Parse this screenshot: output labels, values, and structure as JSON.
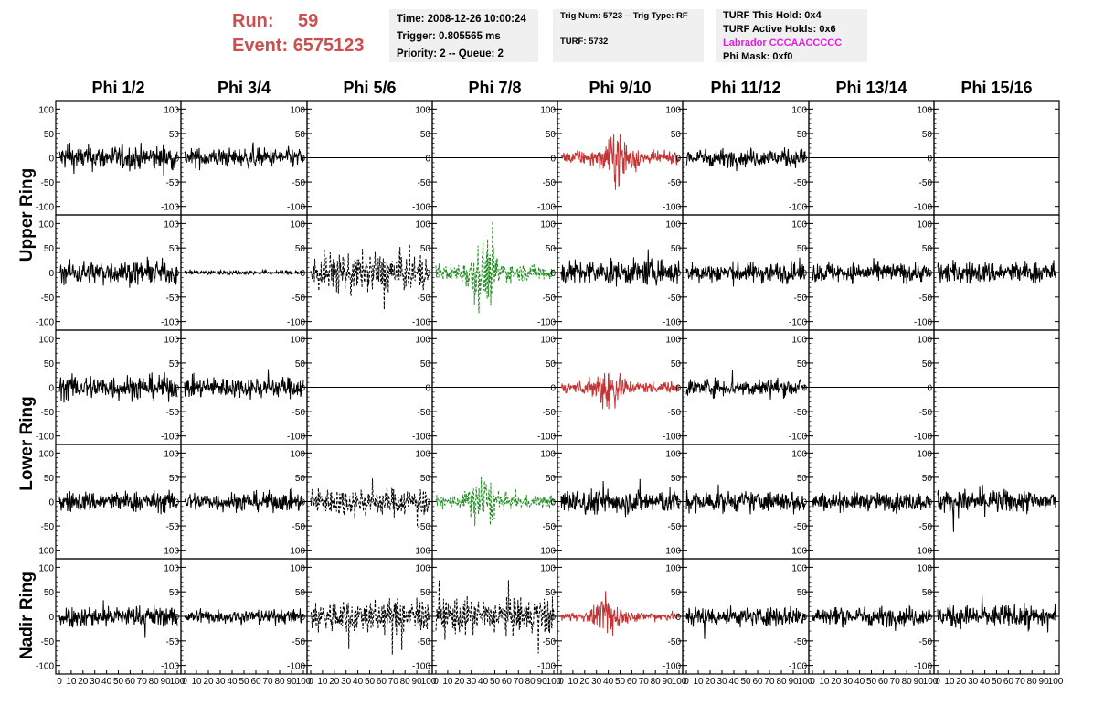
{
  "header": {
    "run_label": "Run:",
    "run_value": "59",
    "event_label": "Event:",
    "event_value": "6575123",
    "info1": [
      "Time: 2008-12-26 10:00:24",
      "Trigger: 0.805565 ms",
      "Priority: 2 -- Queue: 2"
    ],
    "info2": [
      "Trig Num: 5723 -- Trig Type: RF",
      "",
      "TURF: 5732"
    ],
    "info3": [
      "TURF This Hold: 0x4",
      "TURF Active Holds: 0x6",
      "Labrador CCCAACCCCC",
      "Phi Mask: 0xf0"
    ],
    "label_color": "#c9504f",
    "highlight_color": "#e020e0"
  },
  "columns": [
    "Phi 1/2",
    "Phi 3/4",
    "Phi 5/6",
    "Phi 7/8",
    "Phi 9/10",
    "Phi 11/12",
    "Phi 13/14",
    "Phi 15/16"
  ],
  "row_groups": [
    "Upper Ring",
    "Lower Ring",
    "Nadir Ring"
  ],
  "chart_data": {
    "type": "line",
    "grid": false,
    "ylim": [
      -110,
      110
    ],
    "xlim": [
      0,
      100
    ],
    "y_ticks": [
      100,
      50,
      0,
      -50,
      -100
    ],
    "x_ticks": [
      0,
      10,
      20,
      30,
      40,
      50,
      60,
      70,
      80,
      90,
      100
    ],
    "colors": {
      "normal": "#000000",
      "trigger": "#c33434",
      "green": "#228b22"
    },
    "panels": [
      [
        {
          "amp": 18,
          "style": "solid",
          "color": "normal",
          "burst": 0
        },
        {
          "amp": 14,
          "style": "solid",
          "color": "normal",
          "burst": 0
        },
        {
          "amp": 0,
          "style": "solid",
          "color": "normal",
          "burst": 0
        },
        {
          "amp": 0,
          "style": "solid",
          "color": "normal",
          "burst": 0
        },
        {
          "amp": 20,
          "style": "solid",
          "color": "trigger",
          "burst": 50
        },
        {
          "amp": 13,
          "style": "solid",
          "color": "normal",
          "burst": 0
        },
        {
          "amp": 0,
          "style": "solid",
          "color": "normal",
          "burst": 0
        },
        {
          "amp": 0,
          "style": "solid",
          "color": "normal",
          "burst": 0
        }
      ],
      [
        {
          "amp": 17,
          "style": "solid",
          "color": "normal",
          "burst": 0
        },
        {
          "amp": 3,
          "style": "solid",
          "color": "normal",
          "burst": 0
        },
        {
          "amp": 28,
          "style": "dashed",
          "color": "normal",
          "burst": 0
        },
        {
          "amp": 26,
          "style": "dashed",
          "color": "green",
          "burst": 40
        },
        {
          "amp": 18,
          "style": "solid",
          "color": "normal",
          "burst": 0
        },
        {
          "amp": 15,
          "style": "solid",
          "color": "normal",
          "burst": 0
        },
        {
          "amp": 14,
          "style": "solid",
          "color": "normal",
          "burst": 0
        },
        {
          "amp": 16,
          "style": "solid",
          "color": "normal",
          "burst": 0
        }
      ],
      [
        {
          "amp": 18,
          "style": "solid",
          "color": "normal",
          "burst": 0
        },
        {
          "amp": 15,
          "style": "solid",
          "color": "normal",
          "burst": 0
        },
        {
          "amp": 0,
          "style": "solid",
          "color": "normal",
          "burst": 0
        },
        {
          "amp": 0,
          "style": "solid",
          "color": "normal",
          "burst": 0
        },
        {
          "amp": 18,
          "style": "solid",
          "color": "trigger",
          "burst": 40
        },
        {
          "amp": 13,
          "style": "solid",
          "color": "normal",
          "burst": 0
        },
        {
          "amp": 0,
          "style": "solid",
          "color": "normal",
          "burst": 0
        },
        {
          "amp": 0,
          "style": "solid",
          "color": "normal",
          "burst": 0
        }
      ],
      [
        {
          "amp": 15,
          "style": "solid",
          "color": "normal",
          "burst": 0
        },
        {
          "amp": 14,
          "style": "solid",
          "color": "normal",
          "burst": 0
        },
        {
          "amp": 20,
          "style": "dashed",
          "color": "normal",
          "burst": 0
        },
        {
          "amp": 20,
          "style": "dashed",
          "color": "green",
          "burst": 40
        },
        {
          "amp": 18,
          "style": "solid",
          "color": "normal",
          "burst": 0
        },
        {
          "amp": 15,
          "style": "solid",
          "color": "normal",
          "burst": 0
        },
        {
          "amp": 13,
          "style": "solid",
          "color": "normal",
          "burst": 0
        },
        {
          "amp": 17,
          "style": "solid",
          "color": "normal",
          "burst": 0
        }
      ],
      [
        {
          "amp": 15,
          "style": "solid",
          "color": "normal",
          "burst": 0
        },
        {
          "amp": 10,
          "style": "solid",
          "color": "normal",
          "burst": 0
        },
        {
          "amp": 24,
          "style": "dashed",
          "color": "normal",
          "burst": 0
        },
        {
          "amp": 26,
          "style": "dashed",
          "color": "normal",
          "burst": 0
        },
        {
          "amp": 14,
          "style": "solid",
          "color": "trigger",
          "burst": 40
        },
        {
          "amp": 14,
          "style": "solid",
          "color": "normal",
          "burst": 0
        },
        {
          "amp": 14,
          "style": "solid",
          "color": "normal",
          "burst": 0
        },
        {
          "amp": 16,
          "style": "solid",
          "color": "normal",
          "burst": 0
        }
      ]
    ]
  }
}
